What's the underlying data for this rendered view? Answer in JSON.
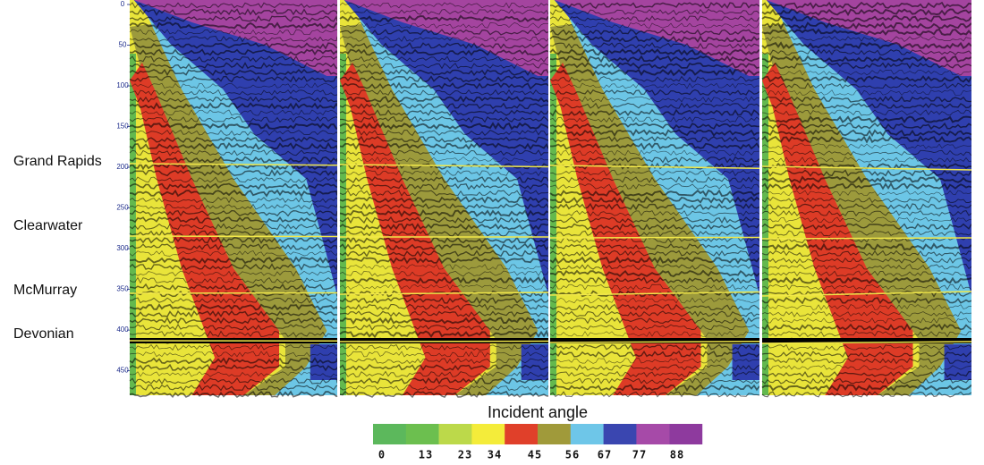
{
  "time_axis": {
    "ticks": [
      0,
      50,
      100,
      150,
      200,
      250,
      300,
      350,
      400,
      450
    ]
  },
  "horizons": [
    {
      "label": "Grand Rapids"
    },
    {
      "label": "Clearwater"
    },
    {
      "label": "McMurray"
    },
    {
      "label": "Devonian"
    }
  ],
  "colorbar": {
    "title": "Incident angle",
    "labels": [
      0,
      13,
      23,
      34,
      45,
      56,
      67,
      77,
      88
    ]
  }
}
